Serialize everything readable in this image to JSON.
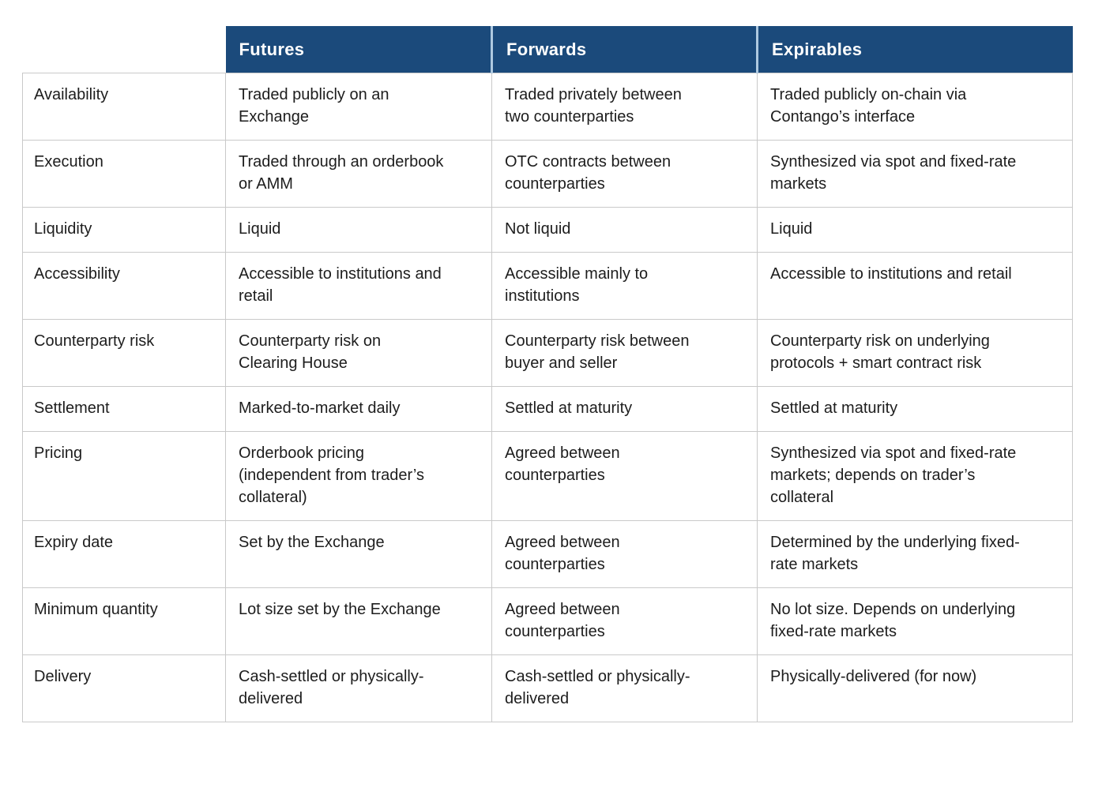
{
  "table": {
    "column_headers": [
      "Futures",
      "Forwards",
      "Expirables"
    ],
    "colors": {
      "header_bg": "#1b4a7b",
      "header_divider": "#aec9e0",
      "grid_border": "#c9c9c9",
      "header_text": "#ffffff",
      "body_text": "#1d1d1d"
    },
    "rows": [
      {
        "label": "Availability",
        "futures": "Traded publicly on an Exchange",
        "forwards": "Traded privately between two counterparties",
        "expirables": "Traded publicly on-chain via Contango’s interface"
      },
      {
        "label": "Execution",
        "futures": "Traded through an orderbook or AMM",
        "forwards": "OTC contracts between counterparties",
        "expirables": "Synthesized via spot and fixed-rate markets"
      },
      {
        "label": "Liquidity",
        "futures": "Liquid",
        "forwards": "Not liquid",
        "expirables": "Liquid"
      },
      {
        "label": "Accessibility",
        "futures": "Accessible to institutions and retail",
        "forwards": "Accessible mainly to institutions",
        "expirables": "Accessible to institutions and retail"
      },
      {
        "label": "Counterparty risk",
        "futures": "Counterparty risk on Clearing House",
        "forwards": "Counterparty risk between buyer and seller",
        "expirables": "Counterparty risk on underlying protocols + smart contract risk"
      },
      {
        "label": "Settlement",
        "futures": "Marked-to-market daily",
        "forwards": "Settled at maturity",
        "expirables": "Settled at maturity"
      },
      {
        "label": "Pricing",
        "futures": "Orderbook pricing (independent from trader’s collateral)",
        "forwards": "Agreed between counterparties",
        "expirables": "Synthesized via spot and fixed-rate markets; depends on trader’s collateral"
      },
      {
        "label": "Expiry date",
        "futures": "Set by the Exchange",
        "forwards": "Agreed between counterparties",
        "expirables": "Determined by the underlying fixed-rate markets"
      },
      {
        "label": "Minimum quantity",
        "futures": "Lot size set by the Exchange",
        "forwards": "Agreed between counterparties",
        "expirables": "No lot size. Depends on underlying fixed-rate markets"
      },
      {
        "label": "Delivery",
        "futures": "Cash-settled or physically-delivered",
        "forwards": "Cash-settled or physically-delivered",
        "expirables": "Physically-delivered (for now)"
      }
    ]
  }
}
